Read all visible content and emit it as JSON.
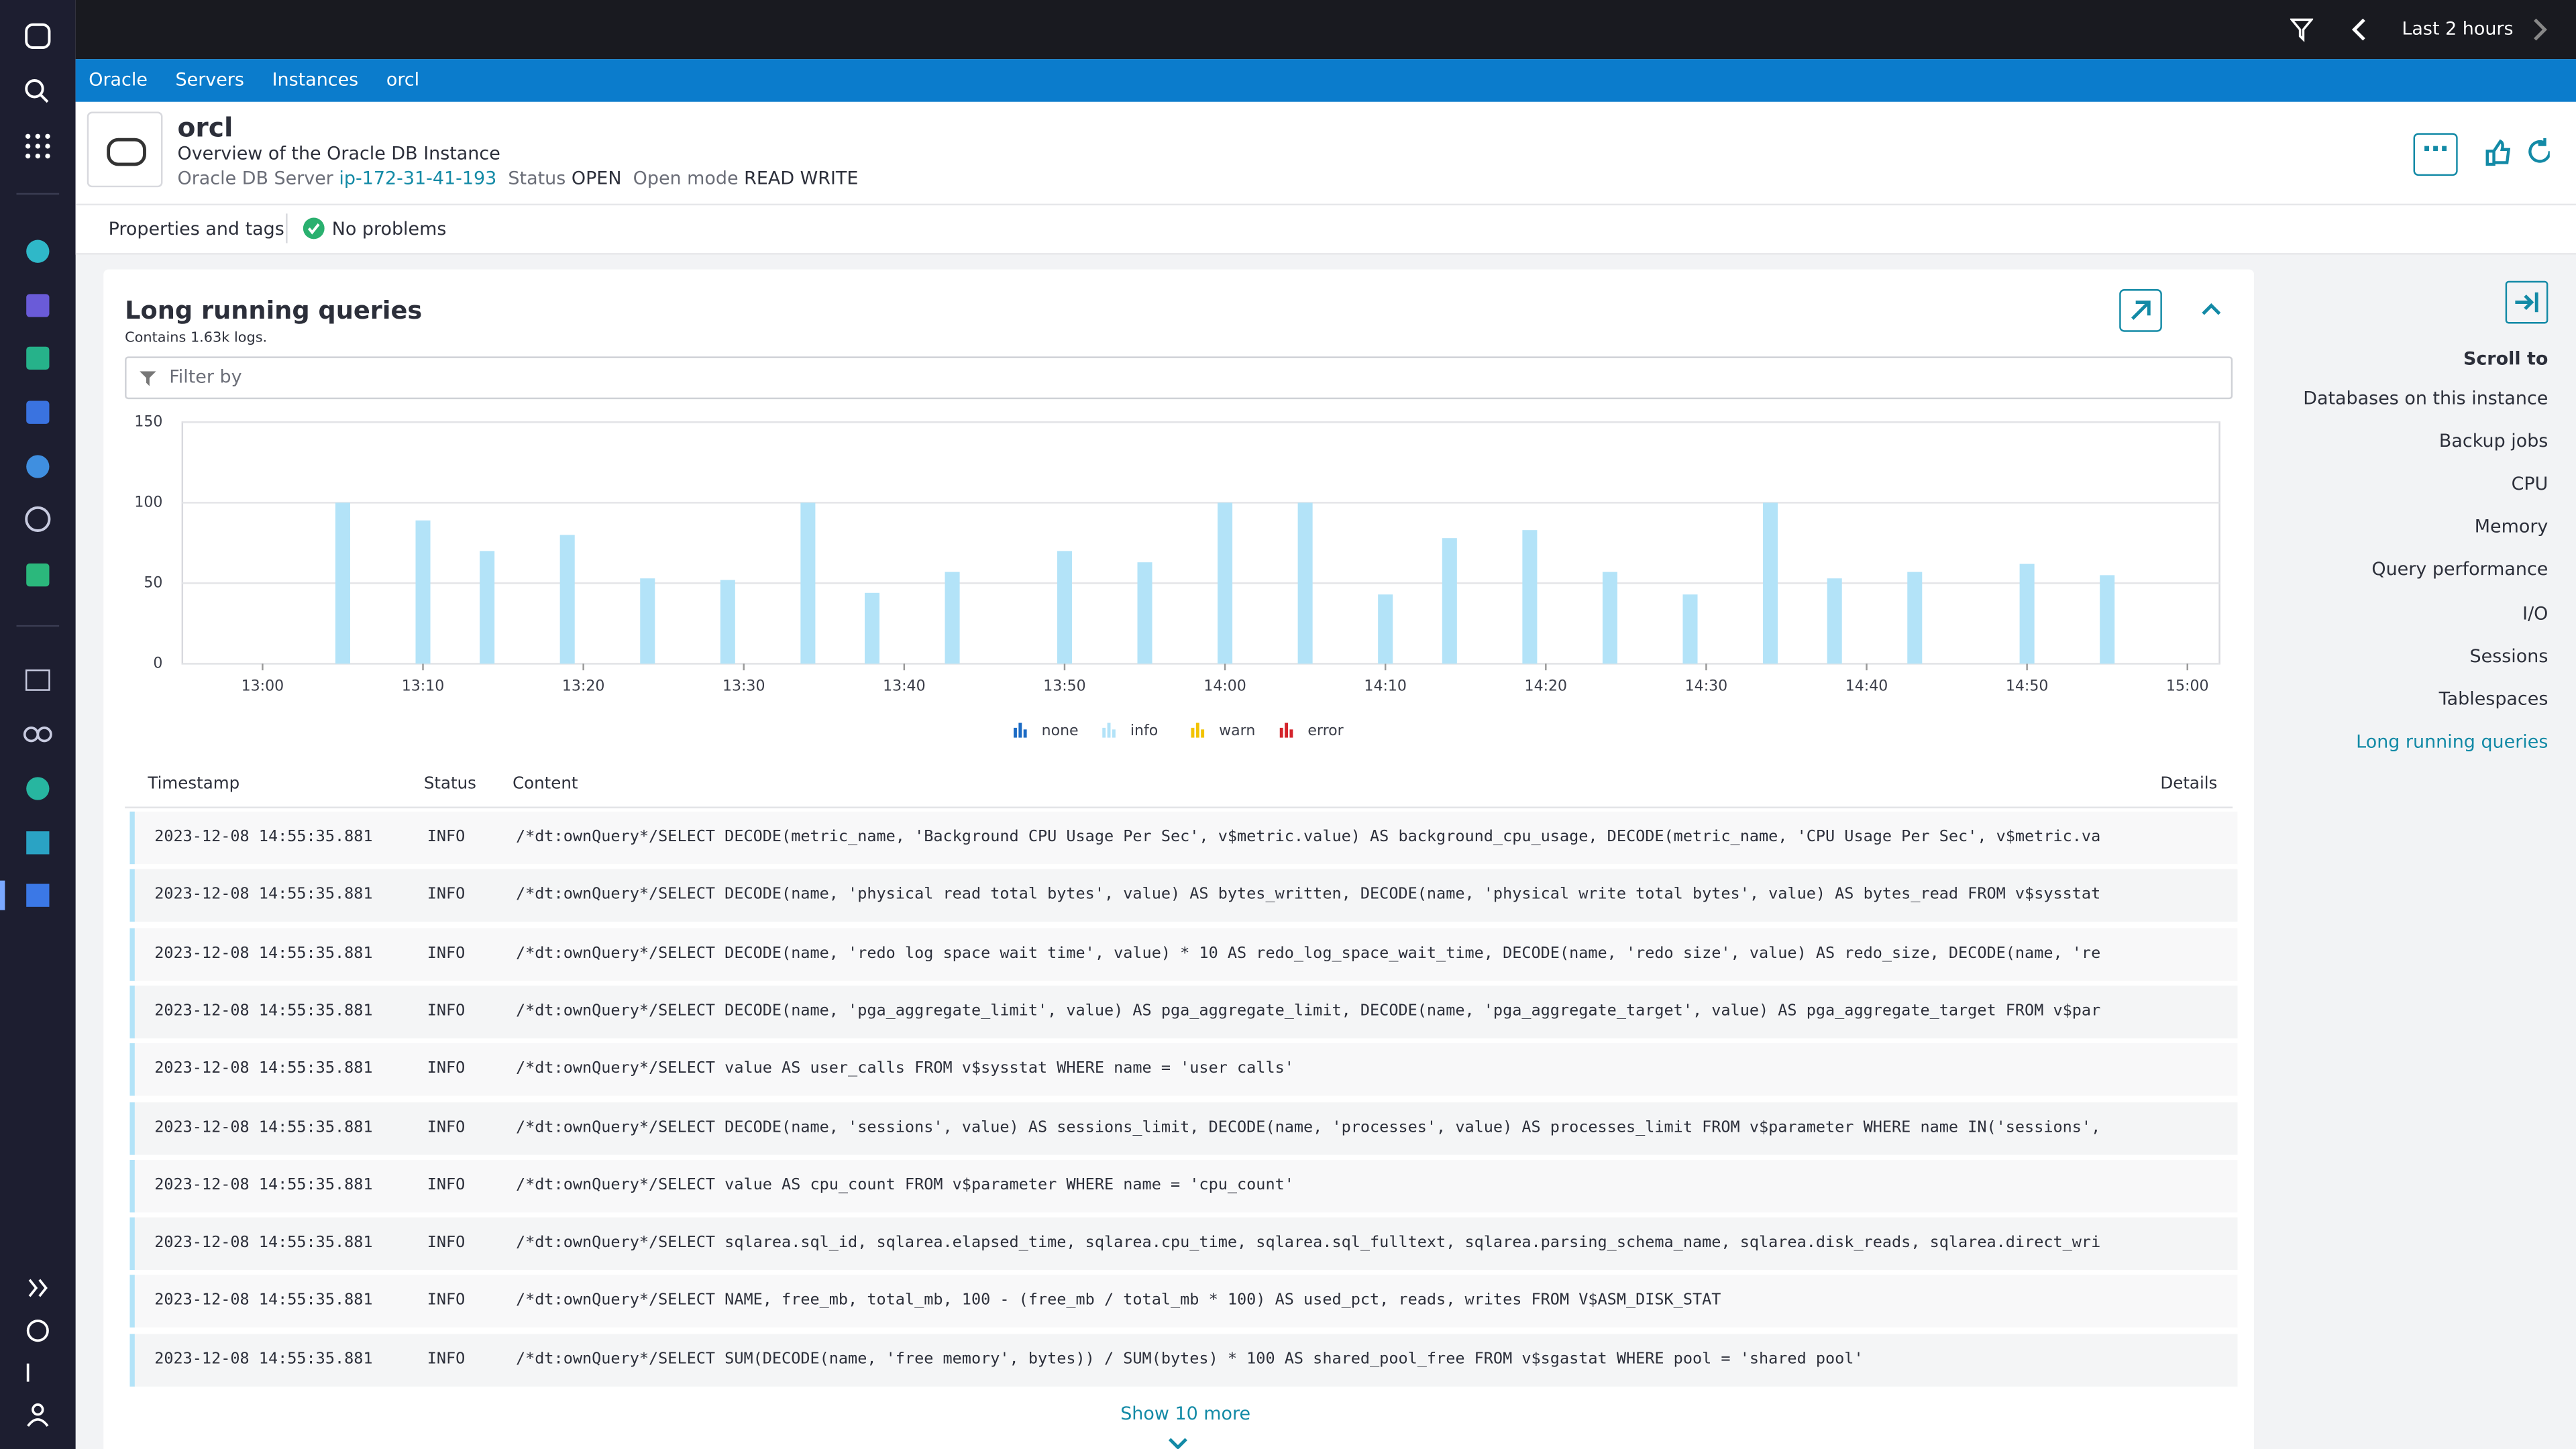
{
  "topbar": {
    "timeframe": "Last 2 hours"
  },
  "breadcrumbs": [
    "Oracle",
    "Servers",
    "Instances",
    "orcl"
  ],
  "header": {
    "title": "orcl",
    "subtitle": "Overview of the Oracle DB Instance",
    "server_label": "Oracle DB Server",
    "server": "ip-172-31-41-193",
    "status_label": "Status",
    "status": "OPEN",
    "mode_label": "Open mode",
    "mode": "READ WRITE"
  },
  "tabs": {
    "properties": "Properties and tags",
    "problems": "No problems"
  },
  "card": {
    "title": "Long running queries",
    "subtitle": "Contains 1.63k logs.",
    "filter_placeholder": "Filter by",
    "show_more": "Show 10 more"
  },
  "chart_data": {
    "type": "bar",
    "x": [
      "13:05",
      "13:10",
      "13:14",
      "13:19",
      "13:24",
      "13:29",
      "13:34",
      "13:38",
      "13:43",
      "13:50",
      "13:55",
      "14:00",
      "14:05",
      "14:10",
      "14:14",
      "14:19",
      "14:24",
      "14:29",
      "14:34",
      "14:38",
      "14:43",
      "14:50",
      "14:55"
    ],
    "series": [
      {
        "name": "none",
        "color": "#1c6bc4",
        "values": [
          null,
          null,
          null,
          null,
          null,
          null,
          null,
          null,
          null,
          null,
          null,
          null,
          null,
          null,
          null,
          null,
          null,
          null,
          null,
          null,
          null,
          null,
          null
        ]
      },
      {
        "name": "info",
        "color": "#b3e3f8",
        "values": [
          100,
          89,
          70,
          80,
          53,
          52,
          100,
          44,
          57,
          70,
          63,
          100,
          100,
          43,
          78,
          83,
          57,
          43,
          100,
          53,
          57,
          62,
          55
        ]
      },
      {
        "name": "warn",
        "color": "#f2c300",
        "values": [
          null,
          null,
          null,
          null,
          null,
          null,
          null,
          null,
          null,
          null,
          null,
          null,
          null,
          null,
          null,
          null,
          null,
          null,
          null,
          null,
          null,
          null,
          null
        ]
      },
      {
        "name": "error",
        "color": "#d4242c",
        "values": [
          null,
          null,
          null,
          null,
          null,
          null,
          null,
          null,
          null,
          null,
          null,
          null,
          null,
          null,
          null,
          null,
          null,
          null,
          null,
          null,
          null,
          null,
          null
        ]
      }
    ],
    "xlim": [
      "12:55",
      "15:02"
    ],
    "xticks": [
      "13:00",
      "13:10",
      "13:20",
      "13:30",
      "13:40",
      "13:50",
      "14:00",
      "14:10",
      "14:20",
      "14:30",
      "14:40",
      "14:50",
      "15:00"
    ],
    "ylim": [
      0,
      150
    ],
    "yticks": [
      0,
      50,
      100,
      150
    ],
    "grid": true
  },
  "table": {
    "columns": [
      "Timestamp",
      "Status",
      "Content",
      "Details"
    ],
    "rows": [
      [
        "2023-12-08 14:55:35.881",
        "INFO",
        "/*dt:ownQuery*/SELECT DECODE(metric_name, 'Background CPU Usage Per Sec', v$metric.value) AS background_cpu_usage, DECODE(metric_name, 'CPU Usage Per Sec', v$metric.va"
      ],
      [
        "2023-12-08 14:55:35.881",
        "INFO",
        "/*dt:ownQuery*/SELECT DECODE(name, 'physical read total bytes', value) AS bytes_written, DECODE(name, 'physical write total bytes', value) AS bytes_read FROM v$sysstat"
      ],
      [
        "2023-12-08 14:55:35.881",
        "INFO",
        "/*dt:ownQuery*/SELECT DECODE(name, 'redo log space wait time', value) * 10 AS redo_log_space_wait_time, DECODE(name, 'redo size', value) AS redo_size, DECODE(name, 're"
      ],
      [
        "2023-12-08 14:55:35.881",
        "INFO",
        "/*dt:ownQuery*/SELECT DECODE(name, 'pga_aggregate_limit', value) AS pga_aggregate_limit, DECODE(name, 'pga_aggregate_target', value) AS pga_aggregate_target FROM v$par"
      ],
      [
        "2023-12-08 14:55:35.881",
        "INFO",
        "/*dt:ownQuery*/SELECT value AS user_calls FROM v$sysstat WHERE name = 'user calls'"
      ],
      [
        "2023-12-08 14:55:35.881",
        "INFO",
        "/*dt:ownQuery*/SELECT DECODE(name, 'sessions', value) AS sessions_limit, DECODE(name, 'processes', value) AS processes_limit FROM v$parameter WHERE name IN('sessions',"
      ],
      [
        "2023-12-08 14:55:35.881",
        "INFO",
        "/*dt:ownQuery*/SELECT value AS cpu_count FROM v$parameter WHERE name = 'cpu_count'"
      ],
      [
        "2023-12-08 14:55:35.881",
        "INFO",
        "/*dt:ownQuery*/SELECT sqlarea.sql_id, sqlarea.elapsed_time, sqlarea.cpu_time, sqlarea.sql_fulltext, sqlarea.parsing_schema_name, sqlarea.disk_reads, sqlarea.direct_wri"
      ],
      [
        "2023-12-08 14:55:35.881",
        "INFO",
        "/*dt:ownQuery*/SELECT NAME, free_mb, total_mb, 100 - (free_mb / total_mb * 100) AS used_pct, reads, writes FROM V$ASM_DISK_STAT"
      ],
      [
        "2023-12-08 14:55:35.881",
        "INFO",
        "/*dt:ownQuery*/SELECT SUM(DECODE(name, 'free memory', bytes)) / SUM(bytes) * 100 AS shared_pool_free FROM v$sgastat WHERE pool = 'shared pool'"
      ]
    ]
  },
  "scroll_to": {
    "title": "Scroll to",
    "items": [
      "Databases on this instance",
      "Backup jobs",
      "CPU",
      "Memory",
      "Query performance",
      "I/O",
      "Sessions",
      "Tablespaces",
      "Long running queries"
    ]
  }
}
